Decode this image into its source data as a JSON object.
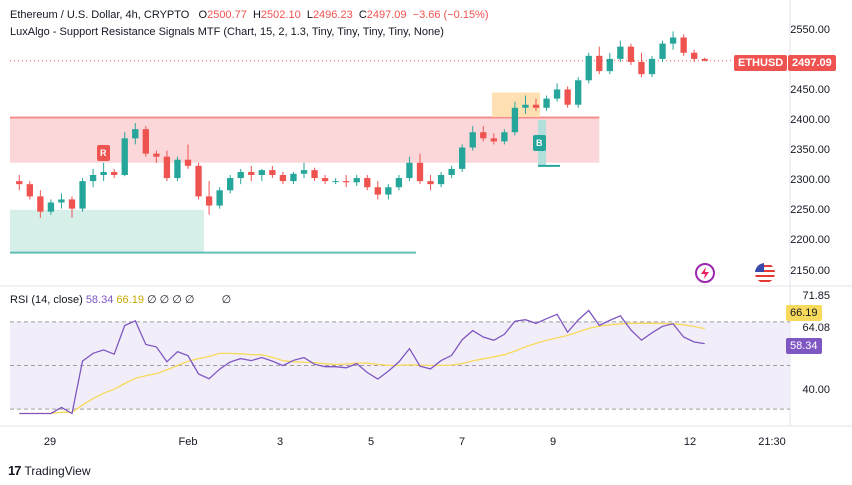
{
  "header": {
    "symbol_line": "Ethereum / U.S. Dollar, 4h, CRYPTO",
    "o_label": "O",
    "o_value": "2500.77",
    "h_label": "H",
    "h_value": "2502.10",
    "l_label": "L",
    "l_value": "2496.23",
    "c_label": "C",
    "c_value": "2497.09",
    "change": "−3.66 (−0.15%)",
    "indicator_line": "LuxAlgo - Support Resistance Signals MTF (Chart, 15, 2, 1.3, Tiny, Tiny, Tiny, Tiny, None)"
  },
  "rsi_header": {
    "label": "RSI (14, close)",
    "value1": "58.34",
    "value2": "66.19",
    "zeros": "∅ ∅ ∅ ∅",
    "zero_last": "∅"
  },
  "price_axis": [
    "2550.00",
    "2450.00",
    "2400.00",
    "2350.00",
    "2300.00",
    "2250.00",
    "2200.00",
    "2150.00"
  ],
  "price_tag": {
    "symbol": "ETHUSD",
    "value": "2497.09"
  },
  "rsi_axis": {
    "top": "71.85",
    "mid": "64.08",
    "low": "40.00",
    "tag_signal": "66.19",
    "tag_rsi": "58.34"
  },
  "time_axis": [
    "29",
    "Feb",
    "3",
    "5",
    "7",
    "9",
    "12",
    "21:30"
  ],
  "signals": {
    "resistance_label": "R",
    "buy_label": "B"
  },
  "footer": {
    "brand": "TradingView"
  },
  "colors": {
    "up": "#26a69a",
    "down": "#ef5350",
    "rsi_line": "#7e57c2",
    "signal_line": "#f7d95b",
    "resistance_zone": "#f9c9cc",
    "support_zone": "#d6efe9"
  },
  "chart_data": {
    "type": "candlestick",
    "series": [
      {
        "name": "ETHUSD",
        "ohlc_approx": [
          [
            2300,
            2310,
            2285,
            2295
          ],
          [
            2295,
            2300,
            2270,
            2275
          ],
          [
            2275,
            2285,
            2240,
            2250
          ],
          [
            2250,
            2270,
            2245,
            2265
          ],
          [
            2265,
            2280,
            2255,
            2270
          ],
          [
            2270,
            2275,
            2240,
            2255
          ],
          [
            2255,
            2305,
            2250,
            2300
          ],
          [
            2300,
            2320,
            2290,
            2310
          ],
          [
            2310,
            2330,
            2300,
            2315
          ],
          [
            2315,
            2320,
            2305,
            2310
          ],
          [
            2310,
            2380,
            2308,
            2370
          ],
          [
            2370,
            2395,
            2360,
            2385
          ],
          [
            2385,
            2390,
            2340,
            2345
          ],
          [
            2345,
            2350,
            2330,
            2340
          ],
          [
            2340,
            2350,
            2300,
            2305
          ],
          [
            2305,
            2340,
            2300,
            2335
          ],
          [
            2335,
            2360,
            2320,
            2325
          ],
          [
            2325,
            2330,
            2270,
            2275
          ],
          [
            2275,
            2300,
            2245,
            2260
          ],
          [
            2260,
            2290,
            2255,
            2285
          ],
          [
            2285,
            2310,
            2280,
            2305
          ],
          [
            2305,
            2320,
            2295,
            2315
          ],
          [
            2315,
            2325,
            2300,
            2310
          ],
          [
            2310,
            2320,
            2300,
            2318
          ],
          [
            2318,
            2325,
            2305,
            2310
          ],
          [
            2310,
            2315,
            2295,
            2300
          ],
          [
            2300,
            2315,
            2295,
            2312
          ],
          [
            2312,
            2330,
            2305,
            2318
          ],
          [
            2318,
            2322,
            2300,
            2305
          ],
          [
            2305,
            2310,
            2295,
            2300
          ],
          [
            2300,
            2305,
            2295,
            2300
          ],
          [
            2300,
            2310,
            2290,
            2298
          ],
          [
            2298,
            2310,
            2292,
            2305
          ],
          [
            2305,
            2310,
            2285,
            2290
          ],
          [
            2290,
            2300,
            2270,
            2278
          ],
          [
            2278,
            2295,
            2270,
            2290
          ],
          [
            2290,
            2310,
            2285,
            2305
          ],
          [
            2305,
            2340,
            2300,
            2330
          ],
          [
            2330,
            2345,
            2295,
            2300
          ],
          [
            2300,
            2310,
            2285,
            2295
          ],
          [
            2295,
            2315,
            2290,
            2310
          ],
          [
            2310,
            2325,
            2305,
            2320
          ],
          [
            2320,
            2360,
            2315,
            2355
          ],
          [
            2355,
            2390,
            2350,
            2380
          ],
          [
            2380,
            2390,
            2365,
            2370
          ],
          [
            2370,
            2378,
            2360,
            2365
          ],
          [
            2365,
            2385,
            2360,
            2380
          ],
          [
            2380,
            2430,
            2375,
            2420
          ],
          [
            2420,
            2440,
            2410,
            2425
          ],
          [
            2425,
            2435,
            2415,
            2420
          ],
          [
            2420,
            2440,
            2415,
            2435
          ],
          [
            2435,
            2460,
            2430,
            2450
          ],
          [
            2450,
            2455,
            2420,
            2425
          ],
          [
            2425,
            2470,
            2420,
            2465
          ],
          [
            2465,
            2510,
            2460,
            2505
          ],
          [
            2505,
            2520,
            2475,
            2480
          ],
          [
            2480,
            2510,
            2475,
            2500
          ],
          [
            2500,
            2530,
            2495,
            2520
          ],
          [
            2520,
            2525,
            2490,
            2495
          ],
          [
            2495,
            2510,
            2470,
            2475
          ],
          [
            2475,
            2505,
            2470,
            2500
          ],
          [
            2500,
            2530,
            2495,
            2525
          ],
          [
            2525,
            2545,
            2515,
            2535
          ],
          [
            2535,
            2540,
            2505,
            2510
          ],
          [
            2510,
            2515,
            2495,
            2500
          ],
          [
            2500,
            2502,
            2496,
            2497
          ]
        ]
      }
    ],
    "ylim": [
      2130,
      2580
    ],
    "rsi": {
      "last": 58.34,
      "signal": 66.19,
      "ylim": [
        25,
        80
      ]
    }
  }
}
